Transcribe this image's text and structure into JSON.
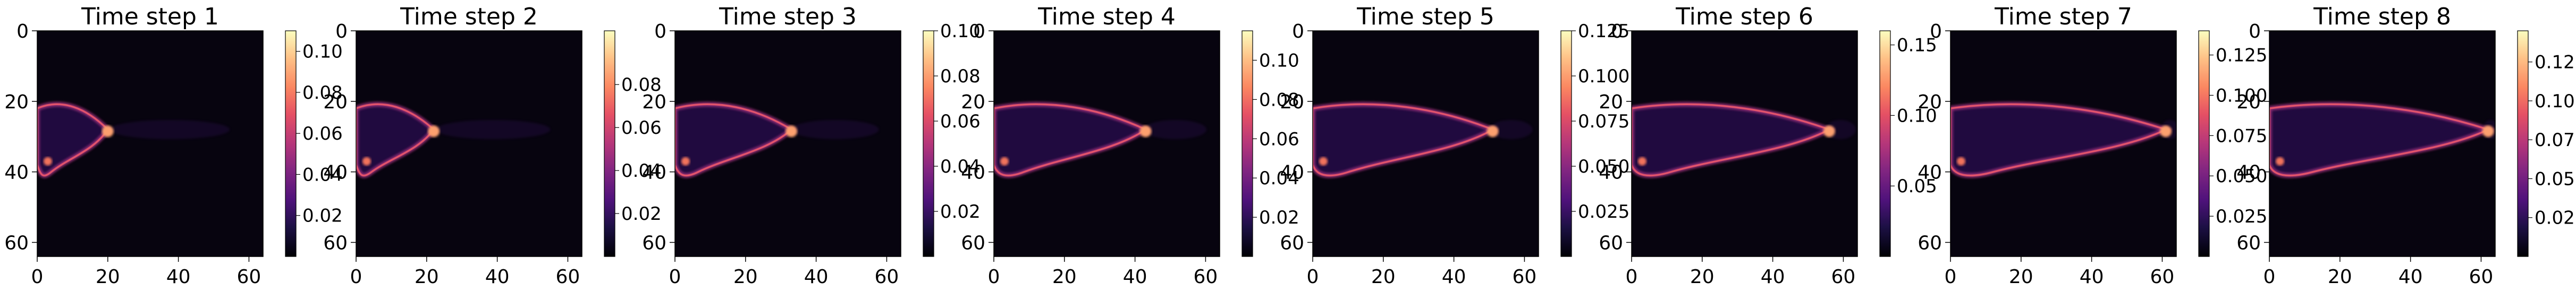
{
  "chart_data": [
    {
      "type": "heatmap",
      "title": "Time step 1",
      "x_ticks": [
        0,
        20,
        40,
        60
      ],
      "y_ticks": [
        0,
        20,
        40,
        60
      ],
      "xlim": [
        0,
        64
      ],
      "ylim": [
        64,
        0
      ],
      "colormap": "magma",
      "colorbar_range": [
        0.0,
        0.11
      ],
      "colorbar_ticks": [
        "0.02",
        "0.04",
        "0.06",
        "0.08",
        "0.10"
      ],
      "peak_x": 20
    },
    {
      "type": "heatmap",
      "title": "Time step 2",
      "x_ticks": [
        0,
        20,
        40,
        60
      ],
      "y_ticks": [
        0,
        20,
        40,
        60
      ],
      "xlim": [
        0,
        64
      ],
      "ylim": [
        64,
        0
      ],
      "colormap": "magma",
      "colorbar_range": [
        0.0,
        0.105
      ],
      "colorbar_ticks": [
        "0.02",
        "0.04",
        "0.06",
        "0.08"
      ],
      "peak_x": 22
    },
    {
      "type": "heatmap",
      "title": "Time step 3",
      "x_ticks": [
        0,
        20,
        40,
        60
      ],
      "y_ticks": [
        0,
        20,
        40,
        60
      ],
      "xlim": [
        0,
        64
      ],
      "ylim": [
        64,
        0
      ],
      "colormap": "magma",
      "colorbar_range": [
        0.0,
        0.1
      ],
      "colorbar_ticks": [
        "0.02",
        "0.04",
        "0.06",
        "0.08",
        "0.10"
      ],
      "peak_x": 33
    },
    {
      "type": "heatmap",
      "title": "Time step 4",
      "x_ticks": [
        0,
        20,
        40,
        60
      ],
      "y_ticks": [
        0,
        20,
        40,
        60
      ],
      "xlim": [
        0,
        64
      ],
      "ylim": [
        64,
        0
      ],
      "colormap": "magma",
      "colorbar_range": [
        0.0,
        0.115
      ],
      "colorbar_ticks": [
        "0.02",
        "0.04",
        "0.06",
        "0.08",
        "0.10"
      ],
      "peak_x": 43
    },
    {
      "type": "heatmap",
      "title": "Time step 5",
      "x_ticks": [
        0,
        20,
        40,
        60
      ],
      "y_ticks": [
        0,
        20,
        40,
        60
      ],
      "xlim": [
        0,
        64
      ],
      "ylim": [
        64,
        0
      ],
      "colormap": "magma",
      "colorbar_range": [
        0.0,
        0.125
      ],
      "colorbar_ticks": [
        "0.025",
        "0.050",
        "0.075",
        "0.100",
        "0.125"
      ],
      "peak_x": 51
    },
    {
      "type": "heatmap",
      "title": "Time step 6",
      "x_ticks": [
        0,
        20,
        40,
        60
      ],
      "y_ticks": [
        0,
        20,
        40,
        60
      ],
      "xlim": [
        0,
        64
      ],
      "ylim": [
        64,
        0
      ],
      "colormap": "magma",
      "colorbar_range": [
        0.0,
        0.16
      ],
      "colorbar_ticks": [
        "0.05",
        "0.10",
        "0.15"
      ],
      "peak_x": 56
    },
    {
      "type": "heatmap",
      "title": "Time step 7",
      "x_ticks": [
        0,
        20,
        40,
        60
      ],
      "y_ticks": [
        0,
        20,
        40,
        60
      ],
      "xlim": [
        0,
        64
      ],
      "ylim": [
        64,
        0
      ],
      "colormap": "magma",
      "colorbar_range": [
        0.0,
        0.14
      ],
      "colorbar_ticks": [
        "0.025",
        "0.050",
        "0.075",
        "0.100",
        "0.125"
      ],
      "peak_x": 61
    },
    {
      "type": "heatmap",
      "title": "Time step 8",
      "x_ticks": [
        0,
        20,
        40,
        60
      ],
      "y_ticks": [
        0,
        20,
        40,
        60
      ],
      "xlim": [
        0,
        64
      ],
      "ylim": [
        64,
        0
      ],
      "colormap": "magma",
      "colorbar_range": [
        0.0,
        0.145
      ],
      "colorbar_ticks": [
        "0.025",
        "0.050",
        "0.075",
        "0.100",
        "0.125"
      ],
      "peak_x": 62
    }
  ]
}
